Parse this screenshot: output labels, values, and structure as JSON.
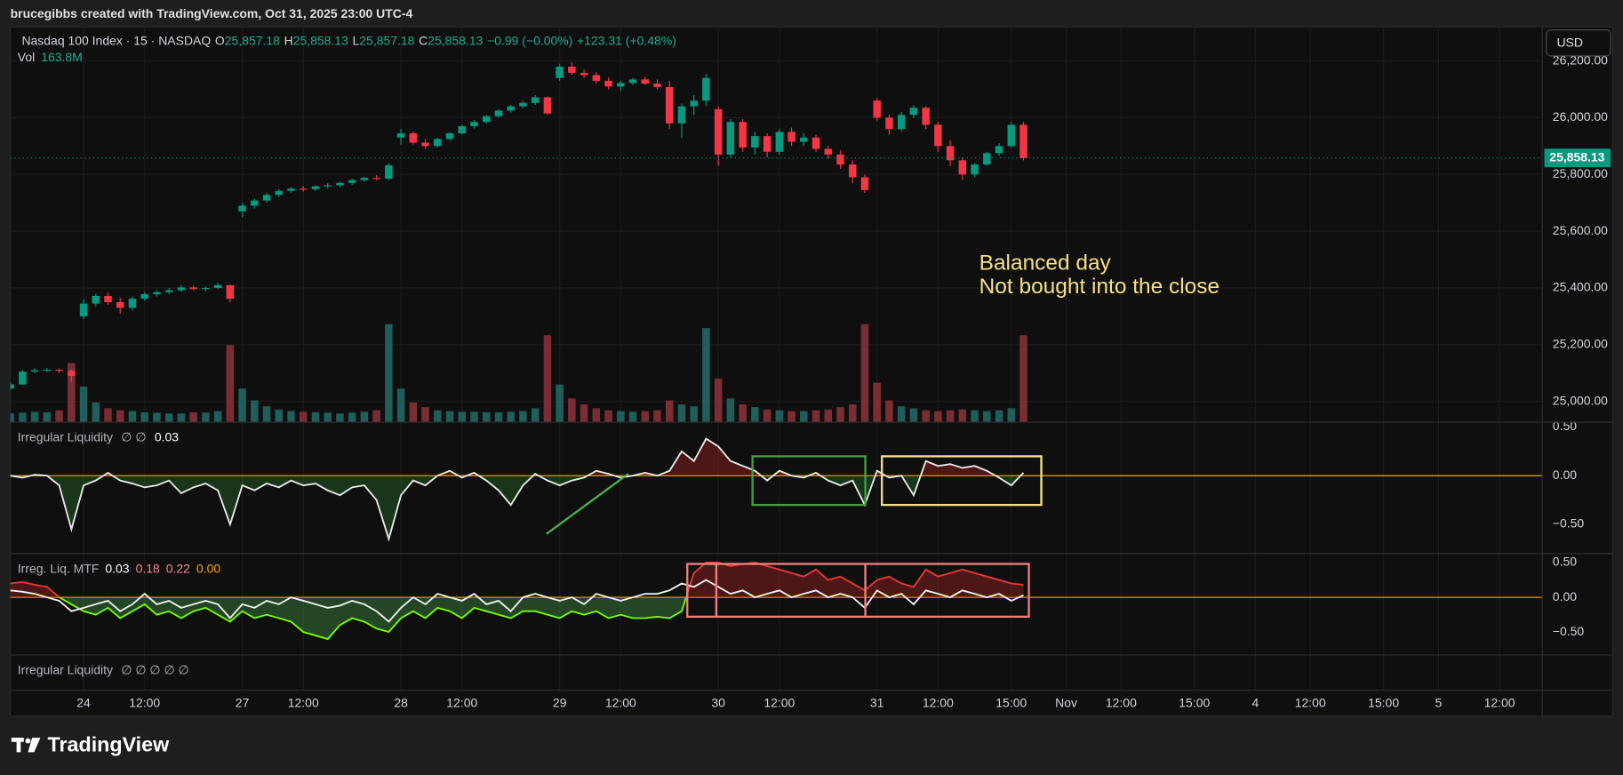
{
  "header": {
    "title": "brucegibbs created with TradingView.com, Oct 31, 2025 23:00 UTC-4"
  },
  "legend": {
    "symbol": "Nasdaq 100 Index · 15 · NASDAQ",
    "fields": [
      {
        "key": "O",
        "value": "25,857.18"
      },
      {
        "key": "H",
        "value": "25,858.13"
      },
      {
        "key": "L",
        "value": "25,857.18"
      },
      {
        "key": "C",
        "value": "25,858.13"
      }
    ],
    "change": "−0.99 (−0.00%)",
    "session_change": "+123.31 (+0.48%)",
    "volume_key": "Vol",
    "volume_value": "163.8M"
  },
  "currency": "USD",
  "annotations": [
    "Balanced day",
    "Not bought into the close"
  ],
  "footer": {
    "brand": "TradingView"
  },
  "chart_data": [
    {
      "type": "candlestick",
      "x": [
        -12,
        -10,
        -8,
        -6,
        -4,
        -2,
        0,
        2,
        4,
        6,
        8,
        10,
        12,
        14,
        16,
        18,
        20,
        22,
        24,
        26,
        28,
        30,
        32,
        34,
        36,
        38,
        40,
        42,
        44,
        46,
        48,
        50,
        52,
        54,
        56,
        58,
        60,
        62,
        64,
        66,
        68,
        70,
        72,
        74,
        76,
        78,
        80,
        82,
        84,
        86,
        88,
        90,
        92,
        94,
        96,
        98,
        100,
        102,
        104,
        106,
        108,
        110,
        112,
        114,
        116,
        118,
        120,
        122,
        124,
        126,
        128,
        130,
        132,
        134,
        136,
        138,
        140,
        142,
        144,
        146,
        148,
        150,
        152,
        154
      ],
      "ohlc": [
        [
          25045,
          25068,
          25040,
          25060
        ],
        [
          25060,
          25112,
          25058,
          25105
        ],
        [
          25105,
          25118,
          25100,
          25110
        ],
        [
          25110,
          25118,
          25104,
          25112
        ],
        [
          25112,
          25116,
          25100,
          25108
        ],
        [
          25108,
          25112,
          25070,
          25090
        ],
        [
          25300,
          25360,
          25290,
          25345
        ],
        [
          25345,
          25380,
          25335,
          25372
        ],
        [
          25372,
          25385,
          25340,
          25350
        ],
        [
          25350,
          25365,
          25310,
          25330
        ],
        [
          25330,
          25370,
          25320,
          25362
        ],
        [
          25362,
          25385,
          25355,
          25378
        ],
        [
          25378,
          25392,
          25370,
          25385
        ],
        [
          25385,
          25400,
          25378,
          25392
        ],
        [
          25392,
          25410,
          25385,
          25402
        ],
        [
          25402,
          25408,
          25392,
          25396
        ],
        [
          25396,
          25405,
          25388,
          25400
        ],
        [
          25400,
          25418,
          25395,
          25410
        ],
        [
          25410,
          25412,
          25350,
          25362
        ],
        [
          25670,
          25700,
          25650,
          25690
        ],
        [
          25690,
          25715,
          25680,
          25708
        ],
        [
          25708,
          25735,
          25700,
          25728
        ],
        [
          25728,
          25748,
          25720,
          25742
        ],
        [
          25742,
          25756,
          25735,
          25750
        ],
        [
          25750,
          25760,
          25740,
          25748
        ],
        [
          25748,
          25762,
          25742,
          25758
        ],
        [
          25758,
          25770,
          25750,
          25762
        ],
        [
          25762,
          25775,
          25755,
          25770
        ],
        [
          25770,
          25785,
          25762,
          25780
        ],
        [
          25780,
          25792,
          25775,
          25788
        ],
        [
          25788,
          25798,
          25780,
          25785
        ],
        [
          25785,
          25840,
          25780,
          25832
        ],
        [
          25930,
          25960,
          25905,
          25945
        ],
        [
          25945,
          25950,
          25905,
          25912
        ],
        [
          25912,
          25925,
          25890,
          25900
        ],
        [
          25900,
          25930,
          25895,
          25925
        ],
        [
          25925,
          25950,
          25918,
          25945
        ],
        [
          25945,
          25975,
          25940,
          25970
        ],
        [
          25970,
          25992,
          25962,
          25985
        ],
        [
          25985,
          26010,
          25978,
          26005
        ],
        [
          26005,
          26030,
          26000,
          26025
        ],
        [
          26025,
          26045,
          26018,
          26040
        ],
        [
          26040,
          26060,
          26032,
          26052
        ],
        [
          26052,
          26080,
          26045,
          26072
        ],
        [
          26072,
          26075,
          26010,
          26015
        ],
        [
          26140,
          26190,
          26130,
          26180
        ],
        [
          26180,
          26195,
          26150,
          26158
        ],
        [
          26158,
          26170,
          26140,
          26150
        ],
        [
          26150,
          26160,
          26120,
          26130
        ],
        [
          26130,
          26142,
          26100,
          26110
        ],
        [
          26110,
          26130,
          26095,
          26122
        ],
        [
          26122,
          26140,
          26115,
          26135
        ],
        [
          26135,
          26145,
          26115,
          26120
        ],
        [
          26120,
          26135,
          26100,
          26108
        ],
        [
          26108,
          26130,
          25960,
          25980
        ],
        [
          25980,
          26050,
          25930,
          26040
        ],
        [
          26040,
          26080,
          26010,
          26060
        ],
        [
          26060,
          26155,
          26040,
          26140
        ],
        [
          26030,
          26040,
          25830,
          25870
        ],
        [
          25870,
          25995,
          25860,
          25985
        ],
        [
          25985,
          25995,
          25880,
          25895
        ],
        [
          25895,
          25950,
          25870,
          25935
        ],
        [
          25935,
          25945,
          25860,
          25880
        ],
        [
          25880,
          25960,
          25870,
          25950
        ],
        [
          25950,
          25965,
          25900,
          25915
        ],
        [
          25915,
          25945,
          25900,
          25930
        ],
        [
          25930,
          25940,
          25880,
          25890
        ],
        [
          25890,
          25900,
          25855,
          25870
        ],
        [
          25870,
          25885,
          25820,
          25835
        ],
        [
          25835,
          25850,
          25770,
          25790
        ],
        [
          25790,
          25800,
          25735,
          25745
        ],
        [
          26060,
          26070,
          25990,
          26000
        ],
        [
          26000,
          26010,
          25940,
          25960
        ],
        [
          25960,
          26020,
          25950,
          26010
        ],
        [
          26010,
          26045,
          26000,
          26035
        ],
        [
          26035,
          26040,
          25960,
          25975
        ],
        [
          25975,
          25985,
          25880,
          25900
        ],
        [
          25900,
          25920,
          25830,
          25850
        ],
        [
          25850,
          25860,
          25780,
          25800
        ],
        [
          25800,
          25840,
          25790,
          25835
        ],
        [
          25835,
          25880,
          25830,
          25875
        ],
        [
          25875,
          25910,
          25865,
          25900
        ],
        [
          25900,
          25985,
          25895,
          25975
        ],
        [
          25975,
          25985,
          25850,
          25858
        ]
      ],
      "volume": [
        22,
        24,
        26,
        25,
        30,
        150,
        90,
        50,
        35,
        30,
        28,
        25,
        24,
        22,
        22,
        25,
        24,
        28,
        195,
        85,
        55,
        40,
        32,
        28,
        26,
        25,
        24,
        22,
        24,
        26,
        30,
        248,
        85,
        50,
        38,
        30,
        28,
        26,
        26,
        25,
        25,
        26,
        28,
        35,
        220,
        95,
        60,
        45,
        35,
        30,
        28,
        26,
        28,
        30,
        55,
        45,
        40,
        238,
        110,
        60,
        45,
        38,
        32,
        30,
        28,
        28,
        30,
        32,
        38,
        45,
        248,
        100,
        55,
        40,
        35,
        30,
        28,
        30,
        32,
        30,
        28,
        30,
        35,
        220
      ],
      "volume_lim": [
        0,
        1000
      ],
      "up_color": "#089981",
      "down_color": "#f23645",
      "volume_up_color": "#1f5e5a",
      "volume_down_color": "#7a2e33",
      "xlim": [
        -12,
        239
      ],
      "ylim": [
        24927,
        26320
      ],
      "yticks": [
        {
          "value": 25000,
          "label": "25,000.00"
        },
        {
          "value": 25200,
          "label": "25,200.00"
        },
        {
          "value": 25400,
          "label": "25,400.00"
        },
        {
          "value": 25600,
          "label": "25,600.00"
        },
        {
          "value": 25800,
          "label": "25,800.00"
        },
        {
          "value": 26000,
          "label": "26,000.00"
        },
        {
          "value": 26200,
          "label": "26,200.00"
        }
      ],
      "xticks": [
        {
          "value": 0,
          "label": "24"
        },
        {
          "value": 10,
          "label": "12:00"
        },
        {
          "value": 26,
          "label": "27"
        },
        {
          "value": 36,
          "label": "12:00"
        },
        {
          "value": 52,
          "label": "28"
        },
        {
          "value": 62,
          "label": "12:00"
        },
        {
          "value": 78,
          "label": "29"
        },
        {
          "value": 88,
          "label": "12:00"
        },
        {
          "value": 104,
          "label": "30"
        },
        {
          "value": 114,
          "label": "12:00"
        },
        {
          "value": 130,
          "label": "31"
        },
        {
          "value": 140,
          "label": "12:00"
        },
        {
          "value": 152,
          "label": "15:00"
        },
        {
          "value": 161,
          "label": "Nov"
        },
        {
          "value": 170,
          "label": "12:00"
        },
        {
          "value": 182,
          "label": "15:00"
        },
        {
          "value": 192,
          "label": "4"
        },
        {
          "value": 201,
          "label": "12:00"
        },
        {
          "value": 213,
          "label": "15:00"
        },
        {
          "value": 222,
          "label": "5"
        },
        {
          "value": 232,
          "label": "12:00"
        }
      ],
      "last_price": {
        "value": 25858.13,
        "label": "25,858.13"
      },
      "grid": true
    },
    {
      "type": "line",
      "title": "Irregular Liquidity",
      "inputs": "∅ ∅",
      "readout": "0.03",
      "ylim": [
        -0.8,
        0.55
      ],
      "yticks": [
        {
          "value": 0.5,
          "label": "0.50"
        },
        {
          "value": 0,
          "label": "0.00"
        },
        {
          "value": -0.5,
          "label": "−0.50"
        }
      ],
      "fill_above": "#c62828",
      "fill_below": "#2e7d32",
      "zero_color": "#f7a600",
      "series": [
        {
          "color": "#e8e8e8",
          "values": [
            0.0,
            -0.02,
            0.01,
            0.0,
            -0.1,
            -0.55,
            -0.1,
            -0.05,
            0.03,
            -0.05,
            -0.08,
            -0.12,
            -0.1,
            -0.05,
            -0.18,
            -0.12,
            -0.08,
            -0.15,
            -0.5,
            -0.1,
            -0.15,
            -0.08,
            -0.12,
            -0.05,
            -0.1,
            -0.08,
            -0.15,
            -0.2,
            -0.12,
            -0.1,
            -0.25,
            -0.65,
            -0.2,
            -0.05,
            -0.1,
            0.0,
            0.05,
            -0.02,
            0.03,
            -0.05,
            -0.15,
            -0.3,
            -0.1,
            0.02,
            -0.05,
            -0.1,
            -0.05,
            -0.02,
            0.05,
            0.02,
            -0.02,
            0.0,
            0.03,
            0.0,
            0.05,
            0.25,
            0.15,
            0.38,
            0.3,
            0.15,
            0.1,
            0.05,
            -0.05,
            0.05,
            0.0,
            -0.02,
            0.03,
            -0.05,
            -0.1,
            -0.05,
            -0.3,
            0.05,
            -0.02,
            0.0,
            -0.2,
            0.15,
            0.1,
            0.12,
            0.08,
            0.1,
            0.05,
            -0.02,
            -0.1,
            0.03
          ]
        }
      ]
    },
    {
      "type": "line",
      "title": "Irreg. Liq. MTF",
      "readouts": [
        "0.03",
        "0.18",
        "0.22",
        "0.00"
      ],
      "ylim": [
        -0.83,
        0.63
      ],
      "yticks": [
        {
          "value": 0.5,
          "label": "0.50"
        },
        {
          "value": 0,
          "label": "0.00"
        },
        {
          "value": -0.5,
          "label": "−0.50"
        }
      ],
      "fill_above": "#c62828",
      "fill_below": "#4caf50",
      "zero_color": "#f7a600",
      "series": [
        {
          "color": "#f0f0f0",
          "values": [
            0.1,
            0.08,
            0.05,
            0.0,
            -0.05,
            -0.2,
            -0.15,
            -0.1,
            -0.05,
            -0.2,
            -0.1,
            0.05,
            -0.1,
            -0.05,
            -0.15,
            -0.1,
            -0.05,
            -0.1,
            -0.3,
            -0.1,
            -0.15,
            -0.05,
            -0.1,
            0.0,
            -0.05,
            -0.1,
            -0.15,
            -0.12,
            -0.05,
            -0.1,
            -0.2,
            -0.35,
            -0.15,
            0.0,
            -0.1,
            0.05,
            0.0,
            -0.05,
            0.05,
            -0.1,
            -0.05,
            -0.2,
            0.0,
            0.05,
            0.0,
            -0.05,
            0.0,
            -0.1,
            0.05,
            0.0,
            -0.05,
            0.0,
            0.05,
            0.05,
            0.1,
            0.2,
            0.15,
            0.25,
            0.15,
            0.05,
            0.1,
            0.0,
            0.05,
            0.1,
            0.0,
            0.05,
            0.1,
            0.0,
            0.05,
            0.0,
            -0.15,
            0.1,
            0.0,
            0.05,
            -0.1,
            0.1,
            0.05,
            0.0,
            0.1,
            0.05,
            0.0,
            0.05,
            -0.05,
            0.03
          ]
        },
        {
          "color_above": "#e53935",
          "color_below": "#76ff03",
          "values": [
            0.2,
            0.22,
            0.18,
            0.15,
            0.0,
            -0.1,
            -0.2,
            -0.25,
            -0.15,
            -0.3,
            -0.2,
            -0.1,
            -0.25,
            -0.2,
            -0.3,
            -0.2,
            -0.15,
            -0.25,
            -0.35,
            -0.2,
            -0.3,
            -0.25,
            -0.3,
            -0.35,
            -0.5,
            -0.55,
            -0.6,
            -0.4,
            -0.3,
            -0.35,
            -0.45,
            -0.5,
            -0.3,
            -0.2,
            -0.3,
            -0.15,
            -0.2,
            -0.3,
            -0.15,
            -0.2,
            -0.25,
            -0.3,
            -0.2,
            -0.2,
            -0.25,
            -0.3,
            -0.2,
            -0.25,
            -0.2,
            -0.3,
            -0.25,
            -0.3,
            -0.3,
            -0.28,
            -0.3,
            -0.2,
            0.35,
            0.5,
            0.5,
            0.45,
            0.48,
            0.5,
            0.45,
            0.4,
            0.35,
            0.3,
            0.4,
            0.25,
            0.3,
            0.2,
            0.1,
            0.25,
            0.3,
            0.2,
            0.15,
            0.4,
            0.3,
            0.35,
            0.4,
            0.35,
            0.3,
            0.25,
            0.2,
            0.18
          ]
        }
      ]
    },
    {
      "type": "placeholder",
      "title": "Irregular Liquidity",
      "inputs": "∅ ∅ ∅ ∅ ∅"
    }
  ]
}
